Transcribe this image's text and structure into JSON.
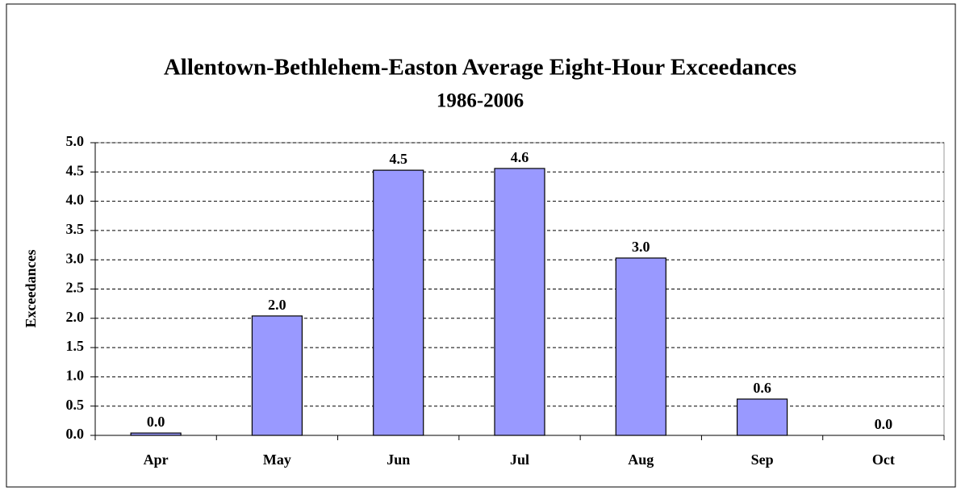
{
  "chart_data": {
    "type": "bar",
    "title": "Allentown-Bethlehem-Easton Average Eight-Hour Exceedances",
    "subtitle": "1986-2006",
    "y_label": "Exceedances",
    "categories": [
      "Apr",
      "May",
      "Jun",
      "Jul",
      "Aug",
      "Sep",
      "Oct"
    ],
    "values": [
      0.04,
      2.04,
      4.53,
      4.56,
      3.03,
      0.62,
      0
    ],
    "value_labels": [
      "0.0",
      "2.0",
      "4.5",
      "4.6",
      "3.0",
      "0.6",
      "0.0"
    ],
    "color": "#9999ff",
    "ylim": [
      0,
      5
    ],
    "yticks": [
      {
        "value": 0,
        "label": "0.0"
      },
      {
        "value": 0.5,
        "label": "0.5"
      },
      {
        "value": 1,
        "label": "1.0"
      },
      {
        "value": 1.5,
        "label": "1.5"
      },
      {
        "value": 2,
        "label": "2.0"
      },
      {
        "value": 2.5,
        "label": "2.5"
      },
      {
        "value": 3,
        "label": "3.0"
      },
      {
        "value": 3.5,
        "label": "3.5"
      },
      {
        "value": 4,
        "label": "4.0"
      },
      {
        "value": 4.5,
        "label": "4.5"
      },
      {
        "value": 5,
        "label": "5.0"
      }
    ],
    "grid": true
  }
}
